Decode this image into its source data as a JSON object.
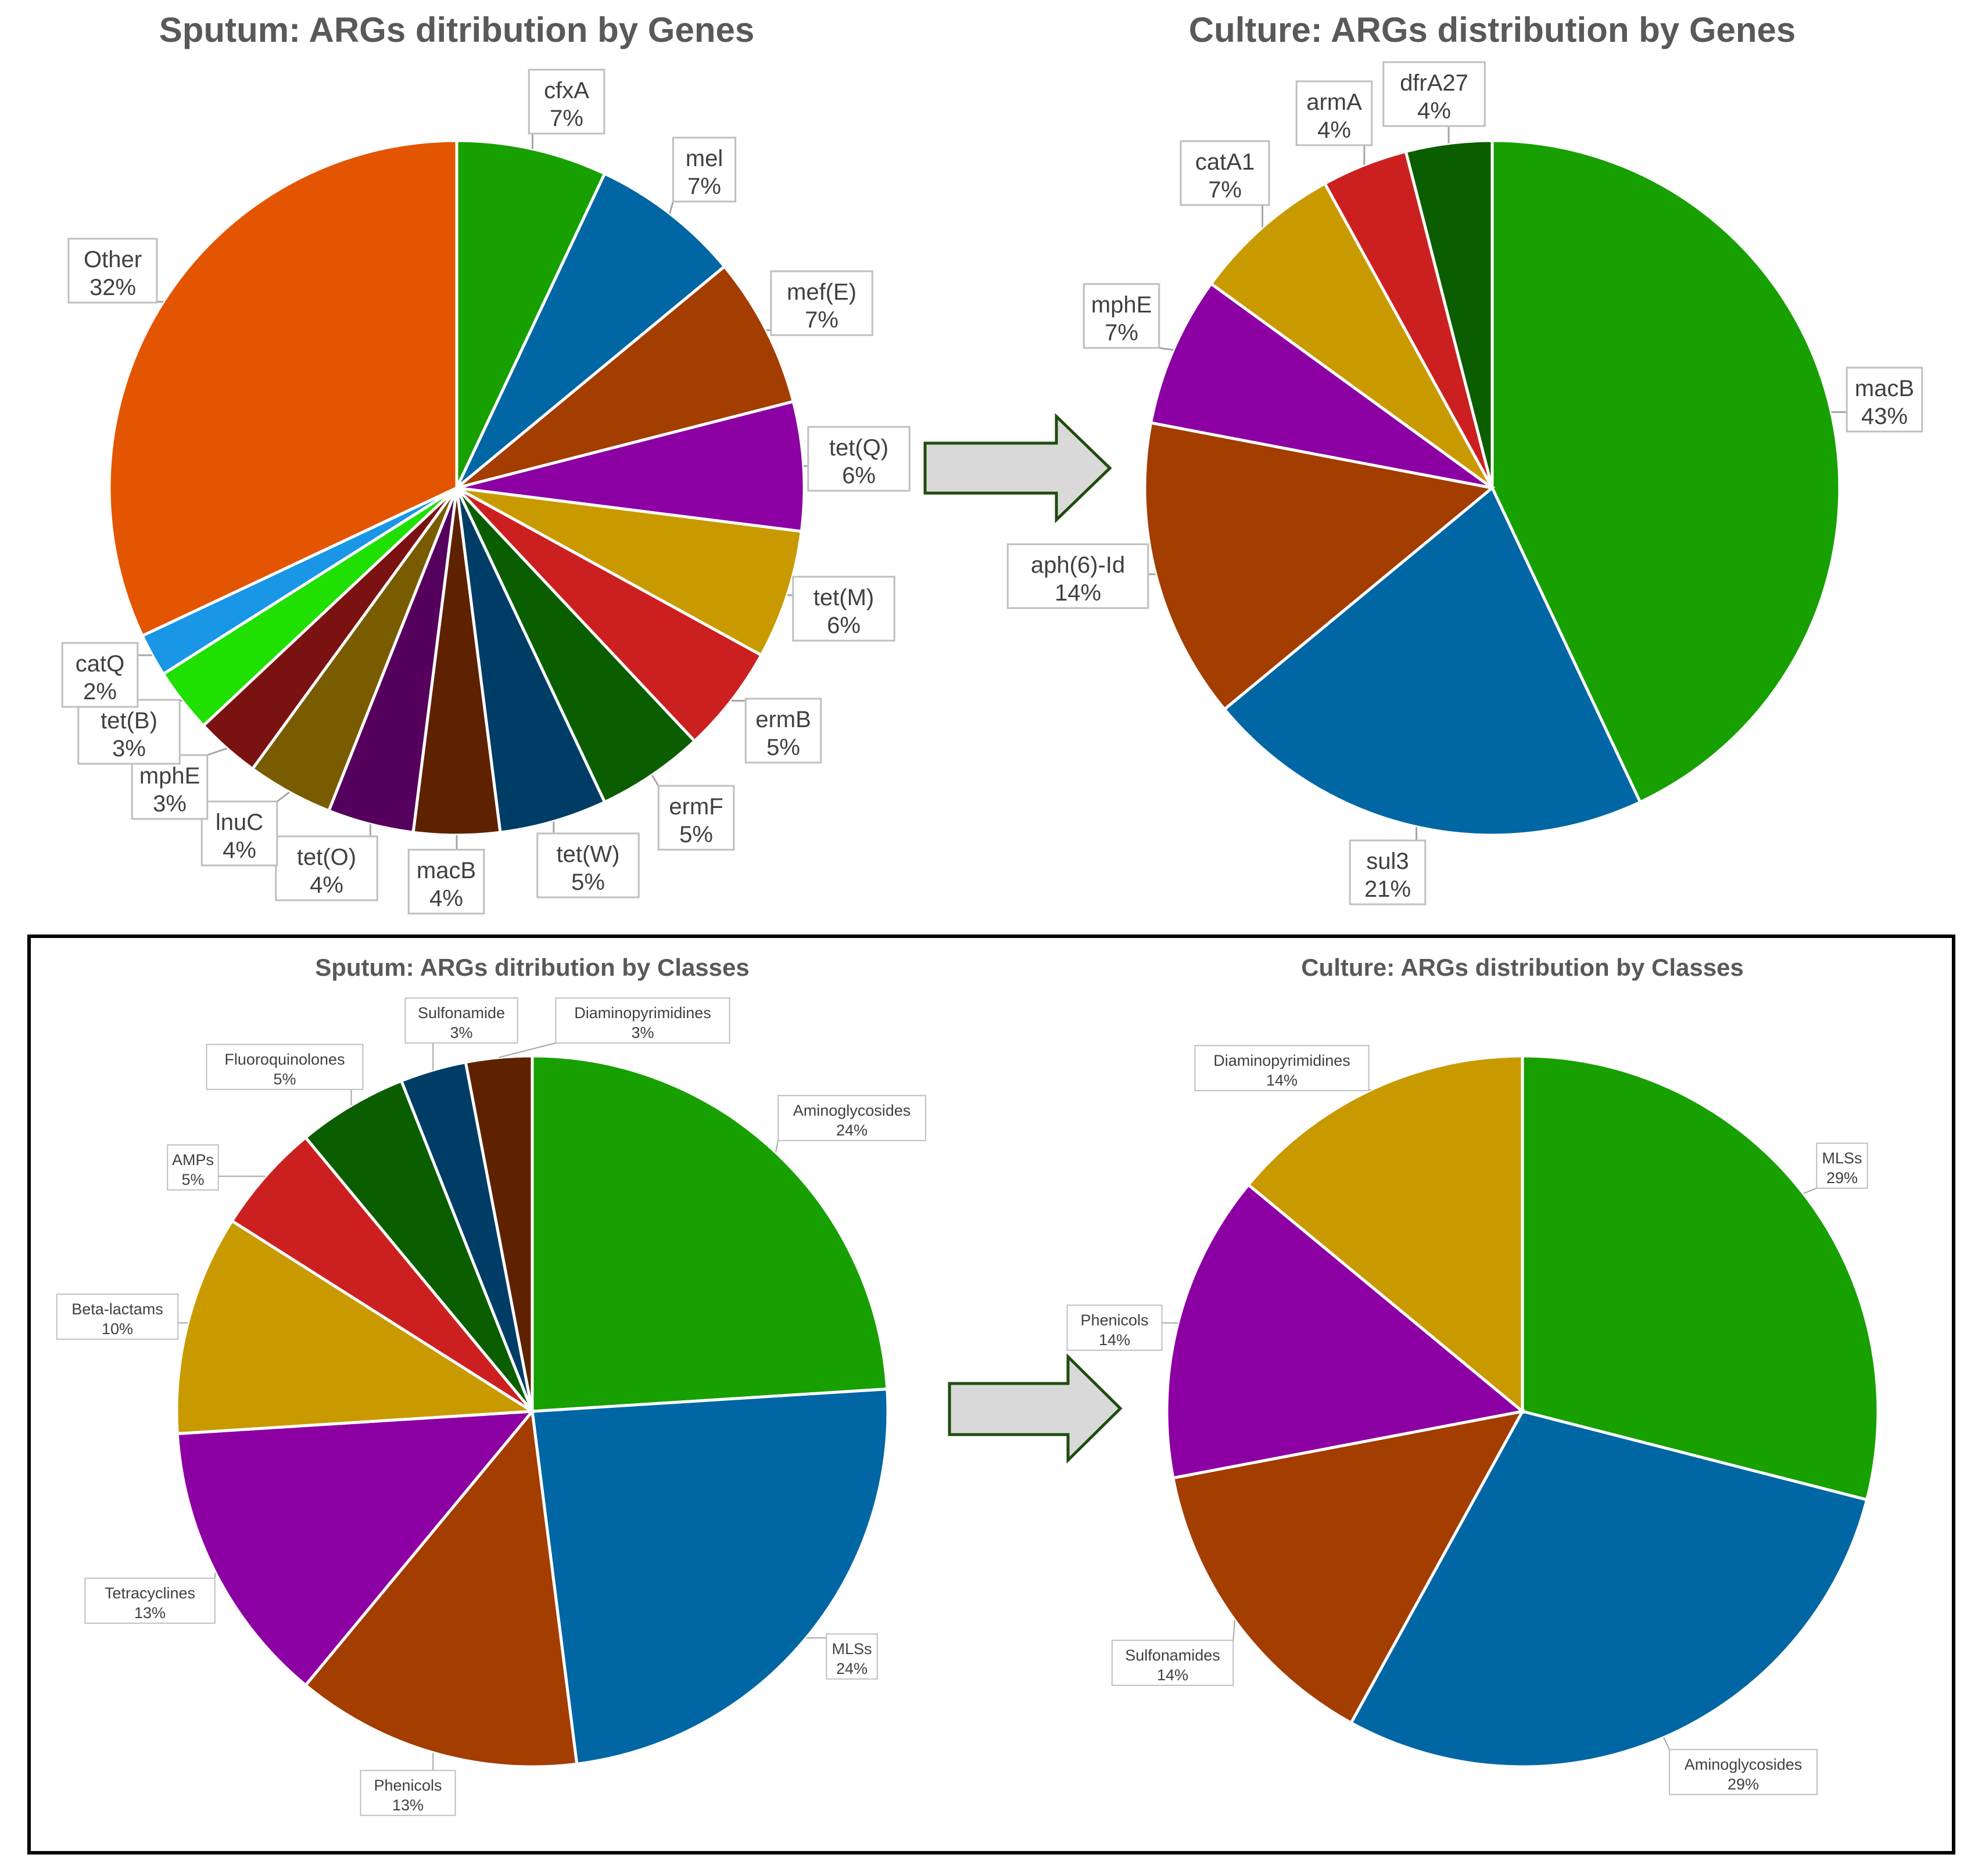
{
  "colors": {
    "green": "#17a000",
    "blue": "#0066a4",
    "brown": "#a33d00",
    "purple": "#8c00a3",
    "gold": "#c99a00",
    "red": "#cc2020",
    "darkgreen": "#0b5e00",
    "navy": "#003d66",
    "darkbrown": "#5e2200",
    "darkpurple": "#56005e",
    "olive": "#7a5c00",
    "maroon": "#7a1212",
    "lime": "#1fe000",
    "skyblue": "#1996e6",
    "orange": "#e35500",
    "arrow_fill": "#d9d9d9",
    "arrow_stroke": "#1e4d0f",
    "frame": "#000000",
    "label_border": "#bfbfbf"
  },
  "arrows": [
    {
      "name": "genes-transition-arrow-icon"
    },
    {
      "name": "classes-transition-arrow-icon"
    }
  ],
  "chart_data": [
    {
      "id": "sputum-genes",
      "type": "pie",
      "title": "Sputum: ARGs ditribution by Genes",
      "slices": [
        {
          "label": "cfxA",
          "pct_label": "7%",
          "value": 7,
          "color": "green"
        },
        {
          "label": "mel",
          "pct_label": "7%",
          "value": 7,
          "color": "blue"
        },
        {
          "label": "mef(E)",
          "pct_label": "7%",
          "value": 7,
          "color": "brown"
        },
        {
          "label": "tet(Q)",
          "pct_label": "6%",
          "value": 6,
          "color": "purple"
        },
        {
          "label": "tet(M)",
          "pct_label": "6%",
          "value": 6,
          "color": "gold"
        },
        {
          "label": "ermB",
          "pct_label": "5%",
          "value": 5,
          "color": "red"
        },
        {
          "label": "ermF",
          "pct_label": "5%",
          "value": 5,
          "color": "darkgreen"
        },
        {
          "label": "tet(W)",
          "pct_label": "5%",
          "value": 5,
          "color": "navy"
        },
        {
          "label": "macB",
          "pct_label": "4%",
          "value": 4,
          "color": "darkbrown"
        },
        {
          "label": "tet(O)",
          "pct_label": "4%",
          "value": 4,
          "color": "darkpurple"
        },
        {
          "label": "lnuC",
          "pct_label": "4%",
          "value": 4,
          "color": "olive"
        },
        {
          "label": "mphE",
          "pct_label": "3%",
          "value": 3,
          "color": "maroon"
        },
        {
          "label": "tet(B)",
          "pct_label": "3%",
          "value": 3,
          "color": "lime"
        },
        {
          "label": "catQ",
          "pct_label": "2%",
          "value": 2,
          "color": "skyblue"
        },
        {
          "label": "Other",
          "pct_label": "32%",
          "value": 32,
          "color": "orange"
        }
      ]
    },
    {
      "id": "culture-genes",
      "type": "pie",
      "title": "Culture: ARGs distribution by Genes",
      "slices": [
        {
          "label": "macB",
          "pct_label": "43%",
          "value": 43,
          "color": "green"
        },
        {
          "label": "sul3",
          "pct_label": "21%",
          "value": 21,
          "color": "blue"
        },
        {
          "label": "aph(6)-Id",
          "pct_label": "14%",
          "value": 14,
          "color": "brown"
        },
        {
          "label": "mphE",
          "pct_label": "7%",
          "value": 7,
          "color": "purple"
        },
        {
          "label": "catA1",
          "pct_label": "7%",
          "value": 7,
          "color": "gold"
        },
        {
          "label": "armA",
          "pct_label": "4%",
          "value": 4,
          "color": "red"
        },
        {
          "label": "dfrA27",
          "pct_label": "4%",
          "value": 4,
          "color": "darkgreen"
        }
      ]
    },
    {
      "id": "sputum-classes",
      "type": "pie",
      "title": "Sputum: ARGs ditribution by Classes",
      "slices": [
        {
          "label": "Aminoglycosides",
          "pct_label": "24%",
          "value": 24,
          "color": "green"
        },
        {
          "label": "MLSs",
          "pct_label": "24%",
          "value": 24,
          "color": "blue"
        },
        {
          "label": "Phenicols",
          "pct_label": "13%",
          "value": 13,
          "color": "brown"
        },
        {
          "label": "Tetracyclines",
          "pct_label": "13%",
          "value": 13,
          "color": "purple"
        },
        {
          "label": "Beta-lactams",
          "pct_label": "10%",
          "value": 10,
          "color": "gold"
        },
        {
          "label": "AMPs",
          "pct_label": "5%",
          "value": 5,
          "color": "red"
        },
        {
          "label": "Fluoroquinolones",
          "pct_label": "5%",
          "value": 5,
          "color": "darkgreen"
        },
        {
          "label": "Sulfonamide",
          "pct_label": "3%",
          "value": 3,
          "color": "navy"
        },
        {
          "label": "Diaminopyrimidines",
          "pct_label": "3%",
          "value": 3,
          "color": "darkbrown"
        }
      ]
    },
    {
      "id": "culture-classes",
      "type": "pie",
      "title": "Culture: ARGs distribution by Classes",
      "slices": [
        {
          "label": "MLSs",
          "pct_label": "29%",
          "value": 29,
          "color": "green"
        },
        {
          "label": "Aminoglycosides",
          "pct_label": "29%",
          "value": 29,
          "color": "blue"
        },
        {
          "label": "Sulfonamides",
          "pct_label": "14%",
          "value": 14,
          "color": "brown"
        },
        {
          "label": "Phenicols",
          "pct_label": "14%",
          "value": 14,
          "color": "purple"
        },
        {
          "label": "Diaminopyrimidines",
          "pct_label": "14%",
          "value": 14,
          "color": "gold"
        }
      ]
    }
  ]
}
